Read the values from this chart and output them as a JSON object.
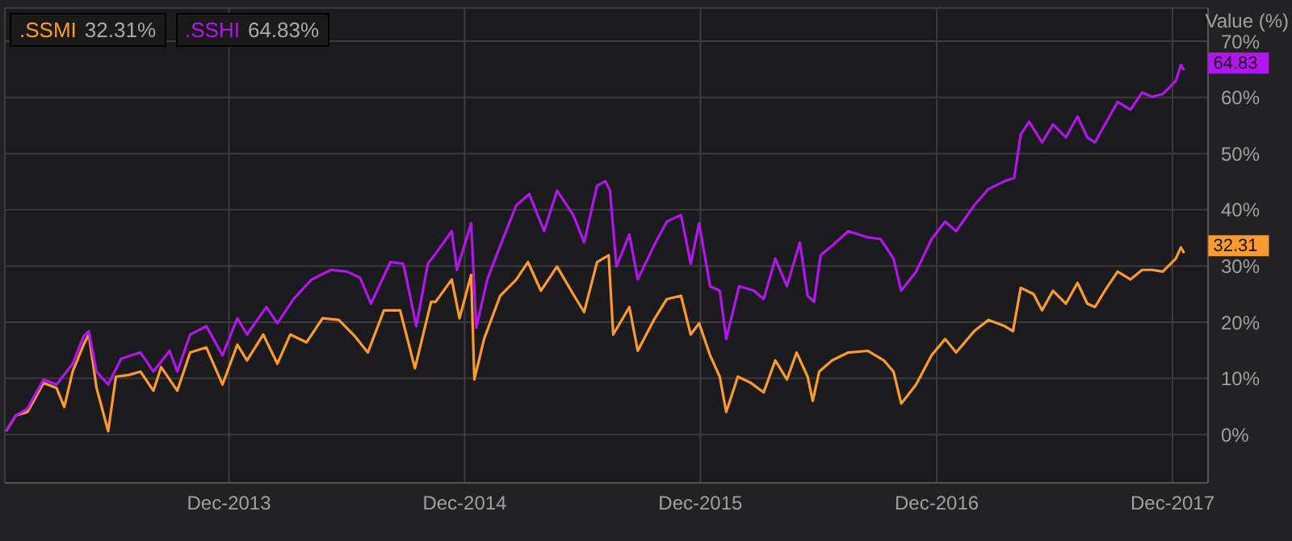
{
  "chart_data": {
    "type": "line",
    "ylabel": "Value (%)",
    "xlim": [
      "2012-12-19",
      "2018-01-25"
    ],
    "xticks": [
      {
        "value": "2013-12-01",
        "label": "Dec-2013"
      },
      {
        "value": "2014-12-01",
        "label": "Dec-2014"
      },
      {
        "value": "2015-12-01",
        "label": "Dec-2015"
      },
      {
        "value": "2016-12-01",
        "label": "Dec-2016"
      },
      {
        "value": "2017-12-01",
        "label": "Dec-2017"
      }
    ],
    "ylim": [
      -8.6,
      75.9
    ],
    "yticks": [
      {
        "value": 0,
        "label": "0%"
      },
      {
        "value": 10,
        "label": "10%"
      },
      {
        "value": 20,
        "label": "20%"
      },
      {
        "value": 30,
        "label": "30%"
      },
      {
        "value": 40,
        "label": "40%"
      },
      {
        "value": 50,
        "label": "50%"
      },
      {
        "value": 60,
        "label": "60%"
      },
      {
        "value": 70,
        "label": "70%"
      }
    ],
    "grid": true,
    "marker": "none",
    "line_style": "solid",
    "annotations": [
      "32.31%",
      "64.83%"
    ],
    "series": [
      {
        "name": ".SSMI",
        "color": "#ff9a2e",
        "x": [
          "2012-12-21",
          "2013-01-05",
          "2013-01-23",
          "2013-02-17",
          "2013-03-09",
          "2013-03-21",
          "2013-04-03",
          "2013-04-20",
          "2013-04-28",
          "2013-05-10",
          "2013-05-28",
          "2013-06-09",
          "2013-06-29",
          "2013-07-17",
          "2013-08-06",
          "2013-08-18",
          "2013-09-12",
          "2013-10-02",
          "2013-10-27",
          "2013-11-21",
          "2013-12-14",
          "2013-12-29",
          "2014-01-23",
          "2014-02-14",
          "2014-03-06",
          "2014-03-31",
          "2014-04-25",
          "2014-05-20",
          "2014-06-14",
          "2014-07-04",
          "2014-07-29",
          "2014-08-23",
          "2014-09-15",
          "2014-10-10",
          "2014-10-17",
          "2014-11-11",
          "2014-11-23",
          "2014-12-11",
          "2014-12-16",
          "2014-12-31",
          "2015-01-25",
          "2015-02-19",
          "2015-03-09",
          "2015-03-29",
          "2015-04-23",
          "2015-05-18",
          "2015-06-04",
          "2015-06-24",
          "2015-07-12",
          "2015-07-19",
          "2015-08-13",
          "2015-08-26",
          "2015-09-20",
          "2015-10-10",
          "2015-11-01",
          "2015-11-16",
          "2015-11-29",
          "2015-12-16",
          "2015-12-31",
          "2016-01-10",
          "2016-01-28",
          "2016-02-17",
          "2016-03-08",
          "2016-03-26",
          "2016-04-13",
          "2016-04-28",
          "2016-05-15",
          "2016-05-23",
          "2016-06-02",
          "2016-06-22",
          "2016-07-17",
          "2016-08-16",
          "2016-09-10",
          "2016-09-25",
          "2016-10-07",
          "2016-10-30",
          "2016-11-23",
          "2016-12-14",
          "2016-12-31",
          "2017-01-28",
          "2017-02-19",
          "2017-03-16",
          "2017-03-29",
          "2017-04-10",
          "2017-04-30",
          "2017-05-13",
          "2017-05-30",
          "2017-06-19",
          "2017-07-07",
          "2017-07-22",
          "2017-08-03",
          "2017-08-21",
          "2017-09-07",
          "2017-09-27",
          "2017-10-15",
          "2017-10-30",
          "2017-11-16",
          "2017-12-06",
          "2017-12-14",
          "2017-12-19"
        ],
        "values": [
          0.6,
          3.4,
          4,
          9.2,
          8.3,
          4.9,
          11.2,
          16,
          17.8,
          8.3,
          0.6,
          10.3,
          10.6,
          11.2,
          7.8,
          12,
          7.8,
          14.6,
          15.5,
          8.9,
          16,
          13.2,
          17.8,
          12.6,
          17.8,
          16.4,
          20.7,
          20.4,
          17.5,
          14.6,
          22.1,
          22.1,
          11.8,
          23.6,
          23.6,
          27.6,
          20.7,
          28.4,
          9.8,
          17,
          24.7,
          27.6,
          30.7,
          25.6,
          29.9,
          25,
          21.8,
          30.7,
          31.9,
          17.8,
          22.7,
          14.9,
          20.4,
          24.1,
          24.7,
          17.8,
          19.8,
          14.1,
          10.3,
          4,
          10.3,
          9.2,
          7.5,
          13.2,
          9.8,
          14.6,
          10.3,
          6,
          11.2,
          13.2,
          14.6,
          14.9,
          13.2,
          11.2,
          5.5,
          8.9,
          14.1,
          17,
          14.6,
          18.4,
          20.4,
          19.3,
          18.4,
          26.1,
          25,
          22.1,
          25.6,
          23.3,
          27,
          23.3,
          22.7,
          26.1,
          29,
          27.6,
          29.3,
          29.3,
          29,
          31.3,
          33.3,
          32.31
        ],
        "value_labels": [
          null,
          null,
          null,
          null,
          null,
          null,
          null,
          null,
          null,
          null,
          null,
          null,
          null,
          null,
          null,
          null,
          null,
          null,
          null,
          null,
          null,
          null,
          null,
          null,
          null,
          null,
          null,
          null,
          null,
          null,
          null,
          null,
          null,
          null,
          null,
          null,
          null,
          null,
          null,
          null,
          null,
          null,
          null,
          null,
          null,
          null,
          null,
          null,
          null,
          null,
          null,
          null,
          null,
          null,
          null,
          null,
          null,
          null,
          null,
          null,
          null,
          null,
          null,
          null,
          null,
          null,
          null,
          null,
          null,
          null,
          null,
          null,
          null,
          null,
          null,
          null,
          null,
          null,
          null,
          null,
          null,
          null,
          null,
          null,
          null,
          null,
          null,
          null,
          null,
          null,
          null,
          null,
          null,
          null,
          null,
          null,
          null,
          null,
          null,
          "32.31"
        ]
      },
      {
        "name": ".SSHI",
        "color": "#b414f0",
        "x": [
          "2012-12-21",
          "2013-01-05",
          "2013-01-23",
          "2013-02-17",
          "2013-03-09",
          "2013-04-03",
          "2013-04-20",
          "2013-04-28",
          "2013-05-10",
          "2013-05-28",
          "2013-06-17",
          "2013-07-17",
          "2013-08-06",
          "2013-08-31",
          "2013-09-12",
          "2013-10-02",
          "2013-10-27",
          "2013-11-21",
          "2013-12-14",
          "2013-12-29",
          "2014-01-28",
          "2014-02-14",
          "2014-03-11",
          "2014-04-08",
          "2014-05-08",
          "2014-06-02",
          "2014-06-22",
          "2014-07-09",
          "2014-08-08",
          "2014-08-28",
          "2014-09-17",
          "2014-10-05",
          "2014-10-17",
          "2014-11-11",
          "2014-11-19",
          "2014-12-11",
          "2014-12-19",
          "2015-01-05",
          "2015-01-25",
          "2015-02-19",
          "2015-03-11",
          "2015-04-03",
          "2015-04-23",
          "2015-05-18",
          "2015-06-04",
          "2015-06-24",
          "2015-07-07",
          "2015-07-14",
          "2015-07-24",
          "2015-08-13",
          "2015-08-26",
          "2015-09-20",
          "2015-10-10",
          "2015-11-01",
          "2015-11-16",
          "2015-11-29",
          "2015-12-16",
          "2015-12-31",
          "2016-01-10",
          "2016-01-30",
          "2016-02-22",
          "2016-03-08",
          "2016-03-26",
          "2016-04-13",
          "2016-05-03",
          "2016-05-15",
          "2016-05-25",
          "2016-06-04",
          "2016-06-22",
          "2016-07-17",
          "2016-08-16",
          "2016-09-05",
          "2016-09-25",
          "2016-10-07",
          "2016-10-30",
          "2016-11-23",
          "2016-12-14",
          "2016-12-31",
          "2017-01-28",
          "2017-02-19",
          "2017-03-16",
          "2017-03-31",
          "2017-04-10",
          "2017-04-23",
          "2017-05-13",
          "2017-05-30",
          "2017-06-19",
          "2017-07-07",
          "2017-07-22",
          "2017-08-03",
          "2017-08-21",
          "2017-09-07",
          "2017-09-27",
          "2017-10-15",
          "2017-10-30",
          "2017-11-16",
          "2017-12-06",
          "2017-12-14",
          "2017-12-19"
        ],
        "values": [
          0.6,
          3.4,
          4.6,
          9.8,
          8.9,
          12.6,
          17.5,
          18.4,
          11.2,
          8.9,
          13.5,
          14.6,
          11.2,
          14.9,
          11.2,
          17.8,
          19.3,
          14.1,
          20.7,
          17.8,
          22.7,
          19.8,
          24.1,
          27.6,
          29.3,
          29,
          27.9,
          23.3,
          30.7,
          30.4,
          19.3,
          30.4,
          32.2,
          36.2,
          29.3,
          37.6,
          19,
          27.6,
          33.6,
          40.8,
          42.8,
          36.2,
          43.4,
          39.1,
          34.2,
          44.3,
          45.1,
          43.4,
          29.9,
          35.6,
          27.6,
          33.6,
          37.9,
          39.1,
          30.4,
          37.6,
          26.4,
          25.6,
          17,
          26.4,
          25.6,
          24.1,
          31.3,
          26.4,
          34.2,
          24.7,
          23.6,
          31.9,
          33.6,
          36.2,
          35.1,
          34.8,
          31.3,
          25.6,
          29,
          34.8,
          37.9,
          36.2,
          40.8,
          43.7,
          45.1,
          45.7,
          53.4,
          55.7,
          52,
          55.2,
          52.9,
          56.6,
          52.9,
          52,
          55.7,
          59.2,
          57.8,
          60.9,
          60.1,
          60.6,
          62.9,
          65.8,
          64.83
        ],
        "value_labels": [
          null,
          null,
          null,
          null,
          null,
          null,
          null,
          null,
          null,
          null,
          null,
          null,
          null,
          null,
          null,
          null,
          null,
          null,
          null,
          null,
          null,
          null,
          null,
          null,
          null,
          null,
          null,
          null,
          null,
          null,
          null,
          null,
          null,
          null,
          null,
          null,
          null,
          null,
          null,
          null,
          null,
          null,
          null,
          null,
          null,
          null,
          null,
          null,
          null,
          null,
          null,
          null,
          null,
          null,
          null,
          null,
          null,
          null,
          null,
          null,
          null,
          null,
          null,
          null,
          null,
          null,
          null,
          null,
          null,
          null,
          null,
          null,
          null,
          null,
          null,
          null,
          null,
          null,
          null,
          null,
          null,
          null,
          null,
          null,
          null,
          null,
          null,
          null,
          null,
          null,
          null,
          null,
          null,
          null,
          null,
          null,
          null,
          null,
          "64.83"
        ]
      }
    ]
  }
}
